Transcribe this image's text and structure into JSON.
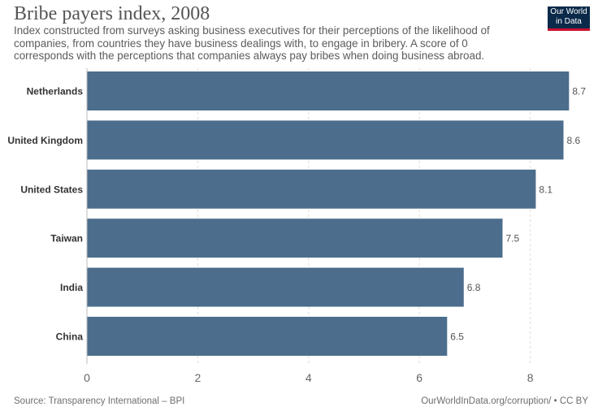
{
  "header": {
    "title": "Bribe payers index, 2008",
    "subtitle": "Index constructed from surveys asking business executives for their perceptions of the likelihood of companies, from countries they have business dealings with, to engage in bribery. A score of 0 corresponds with the perceptions that companies always pay bribes when doing business abroad."
  },
  "logo": {
    "line1": "Our World",
    "line2": "in Data"
  },
  "footer": {
    "source": "Source: Transparency International – BPI",
    "credit": "OurWorldInData.org/corruption/ • CC BY"
  },
  "colors": {
    "bar": "#4c6d8c",
    "grid": "#dddddd",
    "label": "#333333",
    "value": "#555555",
    "tick": "#666666"
  },
  "chart_data": {
    "type": "bar",
    "orientation": "horizontal",
    "title": "Bribe payers index, 2008",
    "categories": [
      "Netherlands",
      "United Kingdom",
      "United States",
      "Taiwan",
      "India",
      "China"
    ],
    "values": [
      8.7,
      8.6,
      8.1,
      7.5,
      6.8,
      6.5
    ],
    "value_labels": [
      "8.7",
      "8.6",
      "8.1",
      "7.5",
      "6.8",
      "6.5"
    ],
    "xticks": [
      0,
      2,
      4,
      6,
      8
    ],
    "xlim": [
      0,
      8.7
    ],
    "grid": "vertical-dashed",
    "xlabel": "",
    "ylabel": ""
  }
}
